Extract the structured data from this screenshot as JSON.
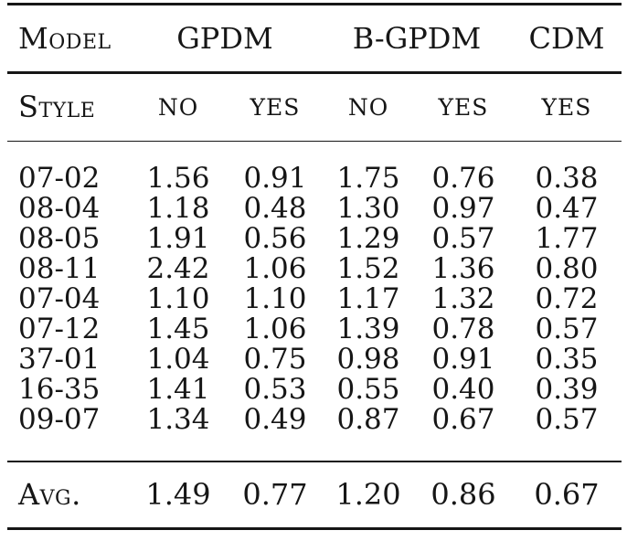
{
  "page": {
    "background": "#ffffff",
    "text_color": "#161616",
    "rule_color": "#161616"
  },
  "table": {
    "model_label": "Model",
    "column_groups": [
      {
        "label": "GPDM",
        "span": 2
      },
      {
        "label": "B-GPDM",
        "span": 2
      },
      {
        "label": "CDM",
        "span": 1
      }
    ],
    "style_label": "Style",
    "style_values": [
      "NO",
      "YES",
      "NO",
      "YES",
      "YES"
    ],
    "rows": [
      {
        "style": "07-02",
        "values": [
          "1.56",
          "0.91",
          "1.75",
          "0.76",
          "0.38"
        ]
      },
      {
        "style": "08-04",
        "values": [
          "1.18",
          "0.48",
          "1.30",
          "0.97",
          "0.47"
        ]
      },
      {
        "style": "08-05",
        "values": [
          "1.91",
          "0.56",
          "1.29",
          "0.57",
          "1.77"
        ]
      },
      {
        "style": "08-11",
        "values": [
          "2.42",
          "1.06",
          "1.52",
          "1.36",
          "0.80"
        ]
      },
      {
        "style": "07-04",
        "values": [
          "1.10",
          "1.10",
          "1.17",
          "1.32",
          "0.72"
        ]
      },
      {
        "style": "07-12",
        "values": [
          "1.45",
          "1.06",
          "1.39",
          "0.78",
          "0.57"
        ]
      },
      {
        "style": "37-01",
        "values": [
          "1.04",
          "0.75",
          "0.98",
          "0.91",
          "0.35"
        ]
      },
      {
        "style": "16-35",
        "values": [
          "1.41",
          "0.53",
          "0.55",
          "0.40",
          "0.39"
        ]
      },
      {
        "style": "09-07",
        "values": [
          "1.34",
          "0.49",
          "0.87",
          "0.67",
          "0.57"
        ]
      }
    ],
    "average": {
      "label": "Avg.",
      "values": [
        "1.49",
        "0.77",
        "1.20",
        "0.86",
        "0.67"
      ]
    }
  },
  "chart_data": {
    "type": "table",
    "columns": [
      "Model",
      "GPDM no",
      "GPDM yes",
      "B-GPDM no",
      "B-GPDM yes",
      "CDM yes"
    ],
    "rows": [
      [
        "07-02",
        1.56,
        0.91,
        1.75,
        0.76,
        0.38
      ],
      [
        "08-04",
        1.18,
        0.48,
        1.3,
        0.97,
        0.47
      ],
      [
        "08-05",
        1.91,
        0.56,
        1.29,
        0.57,
        1.77
      ],
      [
        "08-11",
        2.42,
        1.06,
        1.52,
        1.36,
        0.8
      ],
      [
        "07-04",
        1.1,
        1.1,
        1.17,
        1.32,
        0.72
      ],
      [
        "07-12",
        1.45,
        1.06,
        1.39,
        0.78,
        0.57
      ],
      [
        "37-01",
        1.04,
        0.75,
        0.98,
        0.91,
        0.35
      ],
      [
        "16-35",
        1.41,
        0.53,
        0.55,
        0.4,
        0.39
      ],
      [
        "09-07",
        1.34,
        0.49,
        0.87,
        0.67,
        0.57
      ]
    ],
    "footer_row": [
      "Avg.",
      1.49,
      0.77,
      1.2,
      0.86,
      0.67
    ]
  }
}
